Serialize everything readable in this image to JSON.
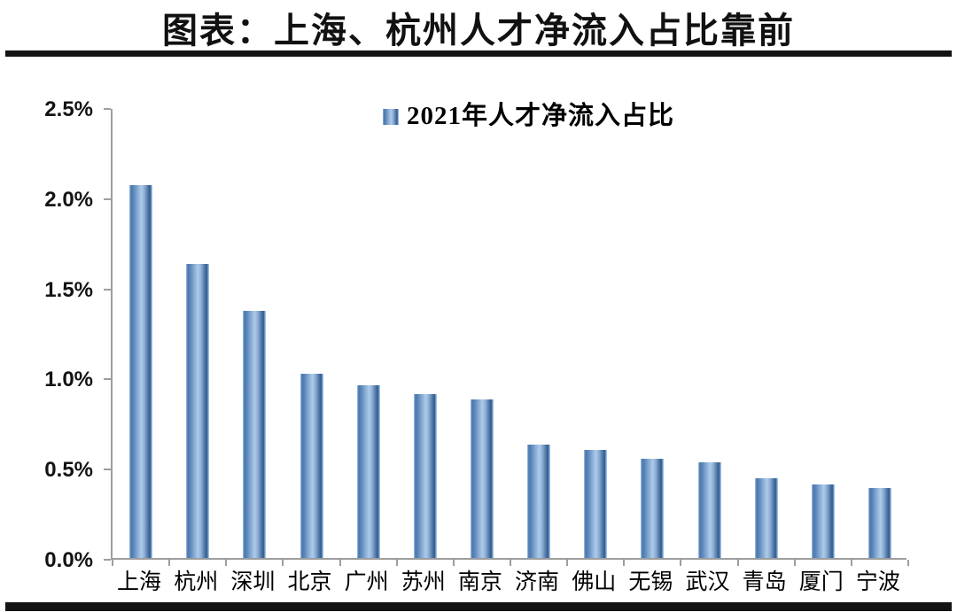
{
  "page": {
    "title": "图表：上海、杭州人才净流入占比靠前"
  },
  "chart_data": {
    "type": "bar",
    "title": "图表：上海、杭州人才净流入占比靠前",
    "legend": [
      {
        "label": "2021年人才净流入占比"
      }
    ],
    "legend_position": "top-center",
    "categories": [
      "上海",
      "杭州",
      "深圳",
      "北京",
      "广州",
      "苏州",
      "南京",
      "济南",
      "佛山",
      "无锡",
      "武汉",
      "青岛",
      "厦门",
      "宁波"
    ],
    "series": [
      {
        "name": "2021年人才净流入占比",
        "values": [
          2.07,
          1.63,
          1.37,
          1.02,
          0.96,
          0.91,
          0.88,
          0.63,
          0.6,
          0.55,
          0.53,
          0.44,
          0.41,
          0.39
        ]
      }
    ],
    "unit": "%",
    "xlabel": "",
    "ylabel": "",
    "ylim": [
      0,
      2.5
    ],
    "ytick_step": 0.5,
    "ytick_labels": [
      "0.0%",
      "0.5%",
      "1.0%",
      "1.5%",
      "2.0%",
      "2.5%"
    ],
    "grid": false,
    "colors": {
      "bar_main": "#4f81bd",
      "bar_edge_dark": "#2f5a8e",
      "bar_center_light": "#aecbe9",
      "axis": "#9e9e9e",
      "text": "#000000",
      "rule": "#141414"
    }
  }
}
